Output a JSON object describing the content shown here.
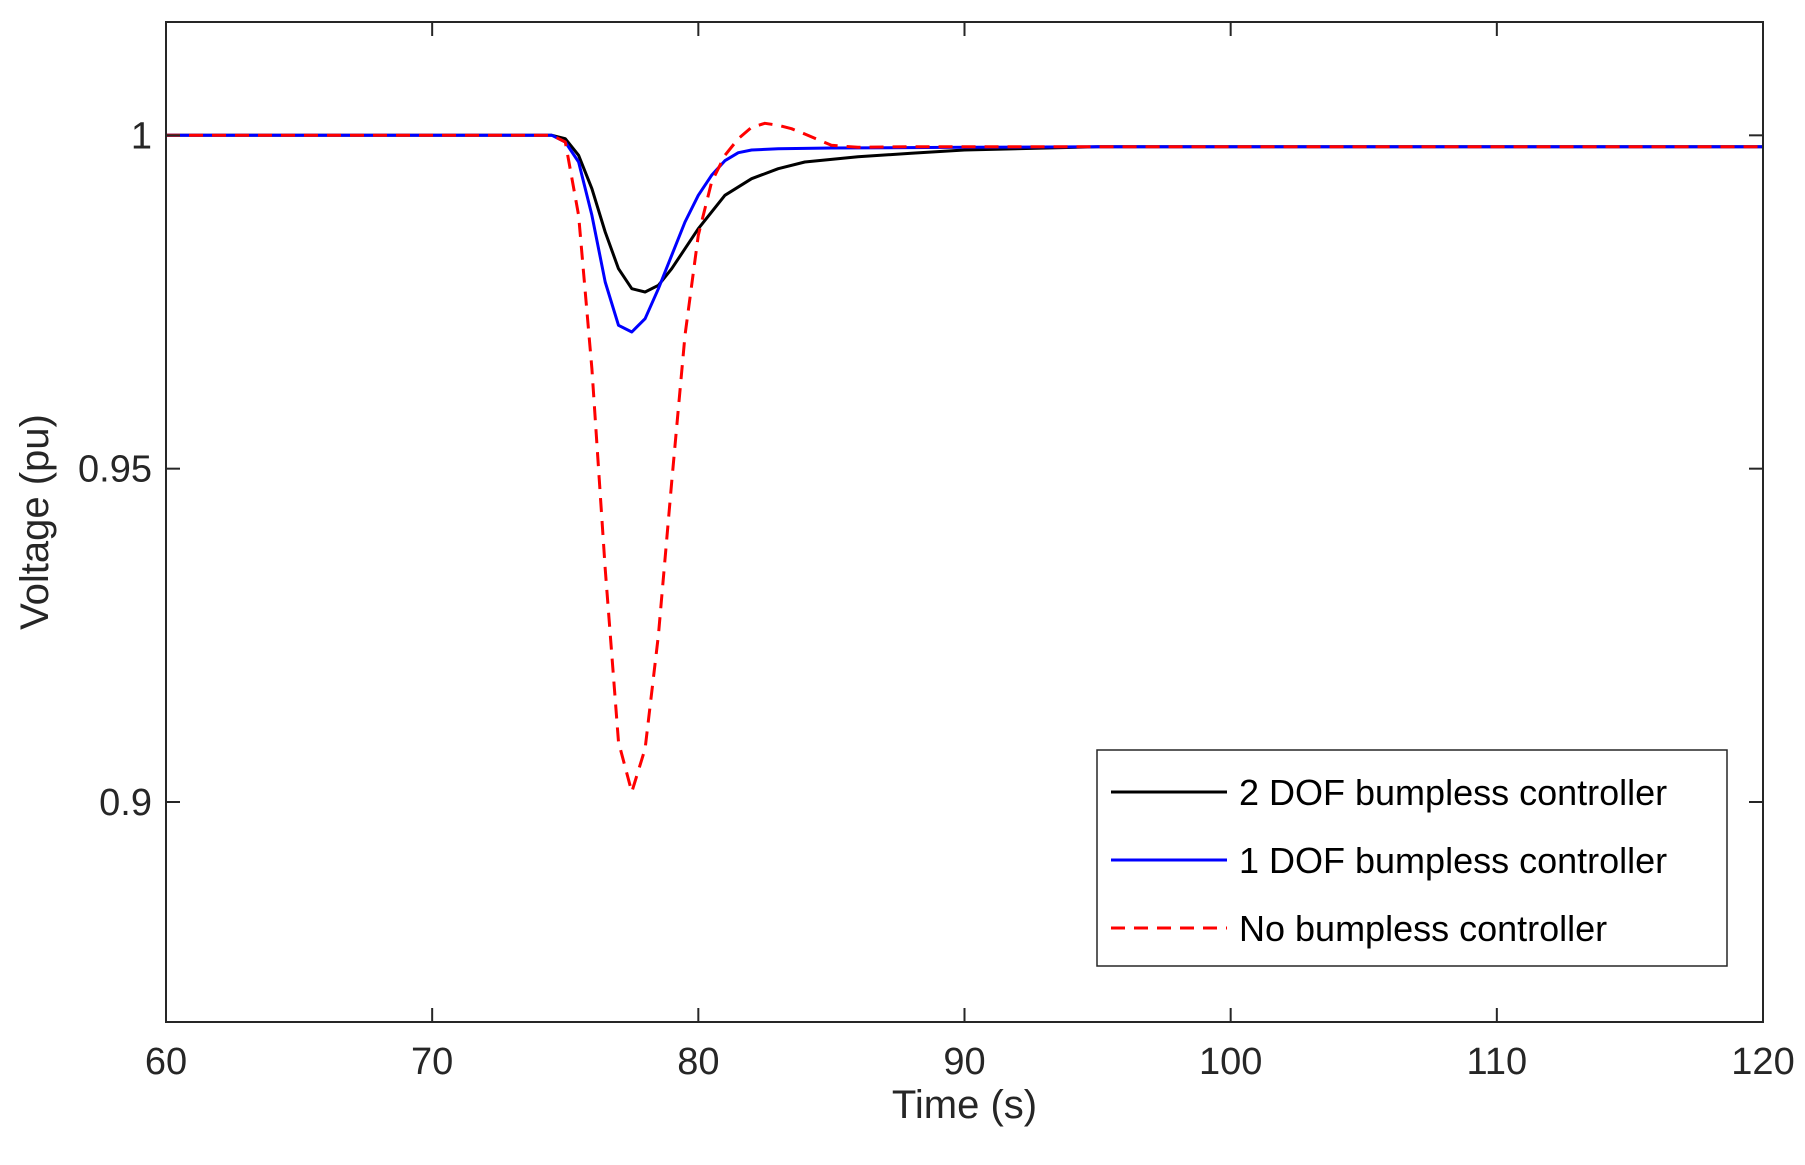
{
  "chart_data": {
    "type": "line",
    "title": "",
    "xlabel": "Time (s)",
    "ylabel": "Voltage (pu)",
    "xlim": [
      60,
      120
    ],
    "ylim": [
      0.867,
      1.017
    ],
    "xticks": [
      60,
      70,
      80,
      90,
      100,
      110,
      120
    ],
    "xtick_labels": [
      "60",
      "70",
      "80",
      "90",
      "100",
      "110",
      "120"
    ],
    "yticks": [
      0.9,
      0.95,
      1
    ],
    "ytick_labels": [
      "0.9",
      "0.95",
      "1"
    ],
    "grid": false,
    "legend_position": "bottom-right",
    "series": [
      {
        "name": "2 DOF bumpless controller",
        "color": "#000000",
        "dash": "solid",
        "x": [
          60,
          74.5,
          75,
          75.5,
          76,
          76.5,
          77,
          77.5,
          78,
          78.5,
          79,
          79.5,
          80,
          81,
          82,
          83,
          84,
          86,
          88,
          90,
          95,
          100,
          110,
          120
        ],
        "y": [
          1.0,
          1.0,
          0.9995,
          0.997,
          0.992,
          0.9855,
          0.98,
          0.977,
          0.9765,
          0.9775,
          0.98,
          0.983,
          0.986,
          0.991,
          0.9935,
          0.995,
          0.996,
          0.9968,
          0.9973,
          0.9978,
          0.9983,
          0.9983,
          0.9983,
          0.9983
        ]
      },
      {
        "name": "1 DOF bumpless controller",
        "color": "#0000ff",
        "dash": "solid",
        "x": [
          60,
          74.5,
          75,
          75.5,
          76,
          76.5,
          77,
          77.5,
          78,
          78.5,
          79,
          79.5,
          80,
          80.5,
          81,
          81.5,
          82,
          83,
          85,
          90,
          95,
          100,
          110,
          120
        ],
        "y": [
          1.0,
          1.0,
          0.999,
          0.996,
          0.988,
          0.978,
          0.9715,
          0.9705,
          0.9725,
          0.977,
          0.982,
          0.987,
          0.991,
          0.994,
          0.9962,
          0.9974,
          0.9978,
          0.998,
          0.9981,
          0.9982,
          0.9983,
          0.9983,
          0.9983,
          0.9983
        ]
      },
      {
        "name": "No bumpless controller",
        "color": "#ff0000",
        "dash": "dashed",
        "x": [
          60,
          74.5,
          75,
          75.5,
          76,
          76.5,
          77,
          77.5,
          78,
          78.5,
          79,
          79.5,
          80,
          80.5,
          81,
          81.5,
          82,
          82.5,
          83,
          83.5,
          84,
          85,
          86,
          88,
          90,
          95,
          100,
          110,
          120
        ],
        "y": [
          1.0,
          1.0,
          0.999,
          0.988,
          0.965,
          0.935,
          0.909,
          0.9015,
          0.908,
          0.925,
          0.948,
          0.97,
          0.985,
          0.993,
          0.997,
          0.9995,
          1.0012,
          1.0018,
          1.0015,
          1.001,
          1.0002,
          0.9985,
          0.9982,
          0.9983,
          0.9983,
          0.9983,
          0.9983,
          0.9983,
          0.9983
        ]
      }
    ]
  }
}
